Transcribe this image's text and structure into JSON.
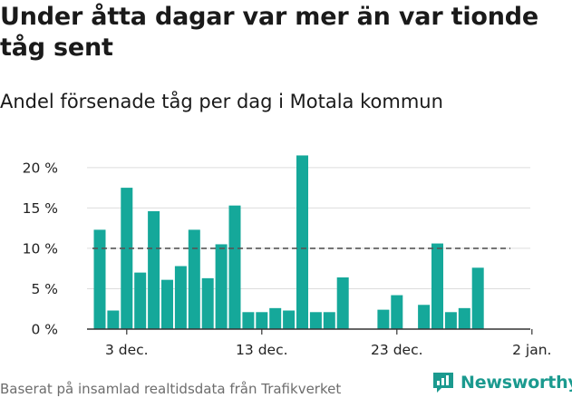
{
  "header": {
    "title": "Under åtta dagar var mer än var tionde tåg sent",
    "subtitle": "Andel försenade tåg per dag i Motala kommun"
  },
  "footer": {
    "source": "Baserat på insamlad realtidsdata från Trafikverket",
    "brand": "Newsworthy",
    "brand_icon": "newsworthy-logo-icon"
  },
  "colors": {
    "bar": "#15a89a",
    "reference_line": "#555555",
    "axis": "#333333",
    "grid": "#dddddd",
    "brand": "#1b9a8f"
  },
  "chart_data": {
    "type": "bar",
    "x_tick_labels": [
      "3 dec.",
      "13 dec.",
      "23 dec.",
      "2 jan."
    ],
    "x_tick_day_index": [
      2,
      12,
      22,
      32
    ],
    "y_tick_labels": [
      "0 %",
      "5 %",
      "10 %",
      "15 %",
      "20 %"
    ],
    "y_ticks": [
      0,
      5,
      10,
      15,
      20
    ],
    "ylim": [
      0,
      22
    ],
    "reference_line": 10,
    "grid": true,
    "legend": "none",
    "categories": [
      "2023-12-01",
      "2023-12-02",
      "2023-12-03",
      "2023-12-04",
      "2023-12-05",
      "2023-12-06",
      "2023-12-07",
      "2023-12-08",
      "2023-12-09",
      "2023-12-10",
      "2023-12-11",
      "2023-12-12",
      "2023-12-13",
      "2023-12-14",
      "2023-12-15",
      "2023-12-16",
      "2023-12-17",
      "2023-12-18",
      "2023-12-19",
      "2023-12-20",
      "2023-12-21",
      "2023-12-22",
      "2023-12-23",
      "2023-12-24",
      "2023-12-25",
      "2023-12-26",
      "2023-12-27",
      "2023-12-28",
      "2023-12-29",
      "2023-12-30",
      "2023-12-31"
    ],
    "values": [
      12.3,
      2.3,
      17.5,
      7.0,
      14.6,
      6.1,
      7.8,
      12.3,
      6.3,
      10.5,
      15.3,
      2.1,
      2.1,
      2.6,
      2.3,
      21.5,
      2.1,
      2.1,
      6.4,
      0,
      0,
      2.4,
      4.2,
      0,
      3.0,
      10.6,
      2.1,
      2.6,
      7.6,
      0,
      0
    ],
    "title": "Andel försenade tåg per dag i Motala kommun",
    "xlabel": "",
    "ylabel": ""
  }
}
